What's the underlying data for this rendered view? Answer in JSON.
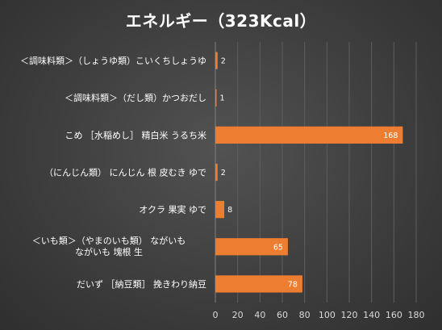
{
  "chart_data": {
    "type": "bar",
    "orientation": "horizontal",
    "title": "エネルギー（323Kcal）",
    "categories": [
      "＜調味料類＞（しょうゆ類）こいくちしょうゆ",
      "＜調味料類＞（だし類）かつおだし",
      "こめ ［水稲めし］ 精白米 うるち米",
      "（にんじん類） にんじん 根 皮むき ゆで",
      "オクラ 果実 ゆで",
      "＜いも類＞（やまのいも類） ながいも ながいも 塊根 生",
      "だいず ［納豆類］ 挽きわり納豆"
    ],
    "values": [
      2,
      1,
      168,
      2,
      8,
      65,
      78
    ],
    "xlim": [
      0,
      180
    ],
    "xticks": [
      0,
      20,
      40,
      60,
      80,
      100,
      120,
      140,
      160,
      180
    ],
    "grid": "vertical",
    "bar_color": "#ed7d31"
  }
}
